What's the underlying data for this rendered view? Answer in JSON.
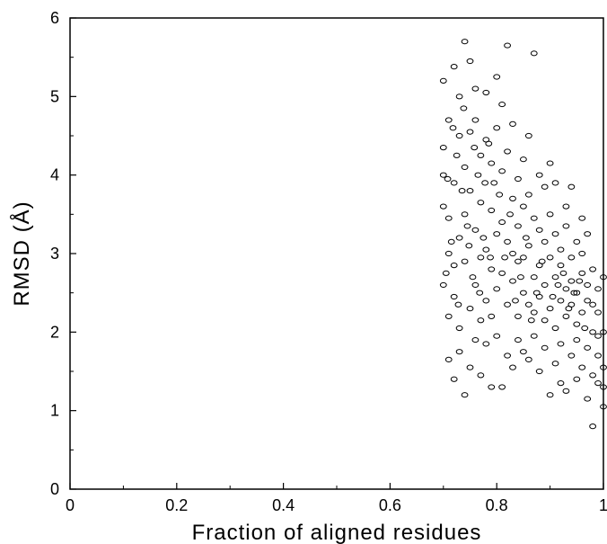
{
  "chart_data": {
    "type": "scatter",
    "xlabel": "Fraction of aligned residues",
    "ylabel": "RMSD (Å)",
    "xlim": [
      0,
      1
    ],
    "ylim": [
      0,
      6
    ],
    "x_ticks": [
      "0",
      "0.2",
      "0.4",
      "0.6",
      "0.8",
      "1"
    ],
    "y_ticks": [
      "0",
      "1",
      "2",
      "3",
      "4",
      "5",
      "6"
    ],
    "grid": false,
    "legend": "none",
    "marker": "open-circle",
    "marker_color": "#000000",
    "series": [
      {
        "points": [
          [
            0.7,
            4.0
          ],
          [
            0.7,
            3.6
          ],
          [
            0.7,
            2.6
          ],
          [
            0.7,
            5.2
          ],
          [
            0.7,
            4.35
          ],
          [
            0.71,
            1.65
          ],
          [
            0.71,
            2.2
          ],
          [
            0.71,
            3.0
          ],
          [
            0.71,
            3.45
          ],
          [
            0.71,
            4.7
          ],
          [
            0.72,
            3.9
          ],
          [
            0.72,
            2.45
          ],
          [
            0.72,
            1.4
          ],
          [
            0.72,
            5.38
          ],
          [
            0.72,
            2.85
          ],
          [
            0.73,
            4.5
          ],
          [
            0.73,
            3.2
          ],
          [
            0.73,
            2.05
          ],
          [
            0.73,
            1.75
          ],
          [
            0.73,
            5.0
          ],
          [
            0.74,
            1.2
          ],
          [
            0.74,
            5.7
          ],
          [
            0.74,
            4.1
          ],
          [
            0.74,
            3.5
          ],
          [
            0.74,
            2.9
          ],
          [
            0.75,
            2.3
          ],
          [
            0.75,
            3.8
          ],
          [
            0.75,
            5.45
          ],
          [
            0.75,
            1.55
          ],
          [
            0.75,
            4.55
          ],
          [
            0.76,
            4.7
          ],
          [
            0.76,
            3.3
          ],
          [
            0.76,
            2.6
          ],
          [
            0.76,
            1.9
          ],
          [
            0.76,
            5.1
          ],
          [
            0.77,
            4.25
          ],
          [
            0.77,
            2.15
          ],
          [
            0.77,
            3.65
          ],
          [
            0.77,
            2.95
          ],
          [
            0.77,
            1.45
          ],
          [
            0.78,
            4.45
          ],
          [
            0.78,
            3.05
          ],
          [
            0.78,
            2.4
          ],
          [
            0.78,
            1.85
          ],
          [
            0.78,
            5.05
          ],
          [
            0.79,
            1.3
          ],
          [
            0.79,
            2.8
          ],
          [
            0.79,
            3.55
          ],
          [
            0.79,
            4.15
          ],
          [
            0.79,
            2.2
          ],
          [
            0.8,
            5.25
          ],
          [
            0.8,
            4.6
          ],
          [
            0.8,
            3.25
          ],
          [
            0.8,
            2.55
          ],
          [
            0.8,
            1.95
          ],
          [
            0.81,
            1.3
          ],
          [
            0.81,
            4.05
          ],
          [
            0.81,
            3.4
          ],
          [
            0.81,
            2.75
          ],
          [
            0.81,
            4.9
          ],
          [
            0.82,
            5.65
          ],
          [
            0.82,
            3.15
          ],
          [
            0.82,
            2.35
          ],
          [
            0.82,
            1.7
          ],
          [
            0.82,
            4.3
          ],
          [
            0.83,
            2.65
          ],
          [
            0.83,
            3.7
          ],
          [
            0.83,
            1.55
          ],
          [
            0.83,
            4.65
          ],
          [
            0.83,
            3.0
          ],
          [
            0.84,
            2.2
          ],
          [
            0.84,
            3.95
          ],
          [
            0.84,
            2.9
          ],
          [
            0.84,
            1.9
          ],
          [
            0.84,
            3.35
          ],
          [
            0.85,
            3.6
          ],
          [
            0.85,
            2.5
          ],
          [
            0.85,
            1.75
          ],
          [
            0.85,
            4.2
          ],
          [
            0.85,
            2.95
          ],
          [
            0.86,
            3.1
          ],
          [
            0.86,
            2.35
          ],
          [
            0.86,
            4.5
          ],
          [
            0.86,
            1.65
          ],
          [
            0.86,
            3.75
          ],
          [
            0.87,
            5.55
          ],
          [
            0.87,
            2.7
          ],
          [
            0.87,
            1.95
          ],
          [
            0.87,
            3.45
          ],
          [
            0.87,
            2.25
          ],
          [
            0.88,
            4.0
          ],
          [
            0.88,
            2.85
          ],
          [
            0.88,
            1.5
          ],
          [
            0.88,
            3.3
          ],
          [
            0.88,
            2.45
          ],
          [
            0.89,
            3.85
          ],
          [
            0.89,
            2.6
          ],
          [
            0.89,
            1.8
          ],
          [
            0.89,
            3.15
          ],
          [
            0.89,
            2.15
          ],
          [
            0.9,
            1.2
          ],
          [
            0.9,
            2.95
          ],
          [
            0.9,
            3.5
          ],
          [
            0.9,
            2.3
          ],
          [
            0.9,
            4.15
          ],
          [
            0.91,
            2.7
          ],
          [
            0.91,
            1.6
          ],
          [
            0.91,
            3.25
          ],
          [
            0.91,
            2.05
          ],
          [
            0.91,
            3.9
          ],
          [
            0.92,
            1.35
          ],
          [
            0.92,
            2.4
          ],
          [
            0.92,
            3.05
          ],
          [
            0.92,
            2.85
          ],
          [
            0.92,
            1.85
          ],
          [
            0.93,
            1.25
          ],
          [
            0.93,
            3.6
          ],
          [
            0.93,
            2.55
          ],
          [
            0.93,
            2.2
          ],
          [
            0.93,
            3.35
          ],
          [
            0.94,
            3.85
          ],
          [
            0.94,
            2.65
          ],
          [
            0.94,
            1.7
          ],
          [
            0.94,
            2.95
          ],
          [
            0.94,
            2.35
          ],
          [
            0.95,
            1.4
          ],
          [
            0.95,
            2.5
          ],
          [
            0.95,
            3.15
          ],
          [
            0.95,
            2.1
          ],
          [
            0.95,
            1.9
          ],
          [
            0.96,
            3.45
          ],
          [
            0.96,
            2.75
          ],
          [
            0.96,
            1.55
          ],
          [
            0.96,
            2.25
          ],
          [
            0.96,
            3.0
          ],
          [
            0.97,
            1.15
          ],
          [
            0.97,
            2.4
          ],
          [
            0.97,
            1.8
          ],
          [
            0.97,
            2.6
          ],
          [
            0.97,
            3.25
          ],
          [
            0.98,
            0.8
          ],
          [
            0.98,
            2.0
          ],
          [
            0.98,
            1.45
          ],
          [
            0.98,
            2.8
          ],
          [
            0.98,
            2.35
          ],
          [
            0.99,
            1.35
          ],
          [
            0.99,
            1.95
          ],
          [
            0.99,
            2.55
          ],
          [
            0.99,
            1.7
          ],
          [
            0.99,
            2.25
          ],
          [
            1.0,
            1.05
          ],
          [
            1.0,
            1.3
          ],
          [
            1.0,
            2.7
          ],
          [
            1.0,
            2.0
          ],
          [
            1.0,
            1.55
          ],
          [
            0.905,
            2.45
          ],
          [
            0.915,
            2.6
          ],
          [
            0.925,
            2.75
          ],
          [
            0.935,
            2.3
          ],
          [
            0.945,
            2.5
          ],
          [
            0.955,
            2.65
          ],
          [
            0.965,
            2.05
          ],
          [
            0.885,
            2.9
          ],
          [
            0.875,
            2.5
          ],
          [
            0.865,
            2.15
          ],
          [
            0.855,
            3.2
          ],
          [
            0.845,
            2.7
          ],
          [
            0.835,
            2.4
          ],
          [
            0.825,
            3.5
          ],
          [
            0.815,
            2.95
          ],
          [
            0.805,
            3.75
          ],
          [
            0.795,
            3.9
          ],
          [
            0.785,
            4.4
          ],
          [
            0.775,
            3.2
          ],
          [
            0.765,
            4.0
          ],
          [
            0.755,
            2.7
          ],
          [
            0.745,
            3.35
          ],
          [
            0.735,
            3.8
          ],
          [
            0.725,
            4.25
          ],
          [
            0.715,
            3.15
          ],
          [
            0.705,
            2.75
          ],
          [
            0.708,
            3.95
          ],
          [
            0.718,
            4.6
          ],
          [
            0.728,
            2.35
          ],
          [
            0.738,
            4.85
          ],
          [
            0.748,
            3.1
          ],
          [
            0.758,
            4.35
          ],
          [
            0.768,
            2.5
          ],
          [
            0.778,
            3.9
          ],
          [
            0.788,
            2.95
          ]
        ]
      }
    ]
  }
}
